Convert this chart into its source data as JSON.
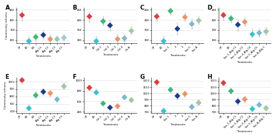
{
  "panels": [
    {
      "label": "A",
      "ylim": [
        285,
        460
      ],
      "yticks": [
        300,
        350,
        400,
        450
      ],
      "treatments": [
        "CP",
        "40",
        "B3",
        "Alg.C1",
        "Alg.C2",
        "Alg.C3",
        "Alg.C3"
      ],
      "points": [
        {
          "y": 425,
          "color": "#d94040",
          "yerr_lo": 30,
          "yerr_hi": 18
        },
        {
          "y": 295,
          "color": "#3bbfcf",
          "yerr_lo": 12,
          "yerr_hi": 22
        },
        {
          "y": 315,
          "color": "#3db87a",
          "yerr_lo": 18,
          "yerr_hi": 18
        },
        {
          "y": 325,
          "color": "#1e3a8a",
          "yerr_lo": 20,
          "yerr_hi": 20
        },
        {
          "y": 305,
          "color": "#e8956a",
          "yerr_lo": 15,
          "yerr_hi": 20
        },
        {
          "y": 305,
          "color": "#8ecfb0",
          "yerr_lo": 14,
          "yerr_hi": 14
        },
        {
          "y": 312,
          "color": "#a0c8d8",
          "yerr_lo": 12,
          "yerr_hi": 18
        }
      ]
    },
    {
      "label": "B",
      "ylim": [
        285,
        460
      ],
      "yticks": [
        300,
        350,
        400,
        450
      ],
      "treatments": [
        "CP",
        "40",
        "Oxl.1",
        "Oxl.2",
        "Oxl.3",
        "Oxl.4",
        "Ox.A"
      ],
      "points": [
        {
          "y": 418,
          "color": "#d94040",
          "yerr_lo": 28,
          "yerr_hi": 18
        },
        {
          "y": 295,
          "color": "#3bbfcf",
          "yerr_lo": 12,
          "yerr_hi": 25
        },
        {
          "y": 395,
          "color": "#3db87a",
          "yerr_lo": 22,
          "yerr_hi": 22
        },
        {
          "y": 372,
          "color": "#1e3a8a",
          "yerr_lo": 25,
          "yerr_hi": 25
        },
        {
          "y": 305,
          "color": "#e8956a",
          "yerr_lo": 18,
          "yerr_hi": 22
        },
        {
          "y": 310,
          "color": "#7ab8d0",
          "yerr_lo": 18,
          "yerr_hi": 20
        },
        {
          "y": 345,
          "color": "#a0c8a0",
          "yerr_lo": 15,
          "yerr_hi": 20
        }
      ]
    },
    {
      "label": "C",
      "ylim": [
        285,
        460
      ],
      "yticks": [
        300,
        350,
        400,
        450
      ],
      "treatments": [
        "CP",
        "40",
        "Suc.1",
        "2",
        "3",
        "Suc.5",
        "Suc.A"
      ],
      "points": [
        {
          "y": 418,
          "color": "#d94040",
          "yerr_lo": 25,
          "yerr_hi": 15
        },
        {
          "y": 295,
          "color": "#3bbfcf",
          "yerr_lo": 12,
          "yerr_hi": 25
        },
        {
          "y": 445,
          "color": "#3db87a",
          "yerr_lo": 22,
          "yerr_hi": 12
        },
        {
          "y": 355,
          "color": "#1e3a8a",
          "yerr_lo": 28,
          "yerr_hi": 28
        },
        {
          "y": 415,
          "color": "#e8956a",
          "yerr_lo": 20,
          "yerr_hi": 20
        },
        {
          "y": 380,
          "color": "#7ab8d0",
          "yerr_lo": 22,
          "yerr_hi": 22
        },
        {
          "y": 398,
          "color": "#a0c8a0",
          "yerr_lo": 18,
          "yerr_hi": 18
        }
      ]
    },
    {
      "label": "D",
      "ylim": [
        285,
        460
      ],
      "yticks": [
        300,
        350,
        400,
        450
      ],
      "treatments": [
        "CP",
        "40",
        "Suc.1_Alg.C1",
        "Suc.2_Alg.C2",
        "Suc.4_Alg.C4",
        "Suc.5_Alg.C5",
        "Suc.A_Alg.C"
      ],
      "points": [
        {
          "y": 422,
          "color": "#d94040",
          "yerr_lo": 25,
          "yerr_hi": 15
        },
        {
          "y": 408,
          "color": "#3db87a",
          "yerr_lo": 22,
          "yerr_hi": 15
        },
        {
          "y": 375,
          "color": "#1e3a8a",
          "yerr_lo": 28,
          "yerr_hi": 25
        },
        {
          "y": 390,
          "color": "#e8956a",
          "yerr_lo": 20,
          "yerr_hi": 20
        },
        {
          "y": 330,
          "color": "#3bbfcf",
          "yerr_lo": 18,
          "yerr_hi": 25
        },
        {
          "y": 335,
          "color": "#7ab8d0",
          "yerr_lo": 18,
          "yerr_hi": 22
        },
        {
          "y": 342,
          "color": "#a0c8a0",
          "yerr_lo": 15,
          "yerr_hi": 20
        }
      ]
    },
    {
      "label": "E",
      "ylim": [
        580,
        1060
      ],
      "yticks": [
        600,
        700,
        800,
        900,
        1000
      ],
      "treatments": [
        "CP",
        "40",
        "B3",
        "Alg.C1",
        "Alg.C2",
        "Alg.C3",
        "Alg.C3"
      ],
      "points": [
        {
          "y": 1015,
          "color": "#d94040",
          "yerr_lo": 45,
          "yerr_hi": 30
        },
        {
          "y": 638,
          "color": "#3bbfcf",
          "yerr_lo": 28,
          "yerr_hi": 45
        },
        {
          "y": 820,
          "color": "#3db87a",
          "yerr_lo": 40,
          "yerr_hi": 40
        },
        {
          "y": 862,
          "color": "#1e3a8a",
          "yerr_lo": 48,
          "yerr_hi": 48
        },
        {
          "y": 840,
          "color": "#e8956a",
          "yerr_lo": 38,
          "yerr_hi": 38
        },
        {
          "y": 758,
          "color": "#7ab8d0",
          "yerr_lo": 35,
          "yerr_hi": 35
        },
        {
          "y": 940,
          "color": "#a0c8a0",
          "yerr_lo": 42,
          "yerr_hi": 42
        }
      ]
    },
    {
      "label": "F",
      "ylim": [
        385,
        1060
      ],
      "yticks": [
        400,
        600,
        800,
        1000
      ],
      "treatments": [
        "CP",
        "40",
        "Oxl.1",
        "Oxl.2",
        "Oxl.3",
        "Oxl.4",
        "Ox.A"
      ],
      "points": [
        {
          "y": 858,
          "color": "#d94040",
          "yerr_lo": 55,
          "yerr_hi": 40
        },
        {
          "y": 775,
          "color": "#3bbfcf",
          "yerr_lo": 45,
          "yerr_hi": 60
        },
        {
          "y": 558,
          "color": "#3db87a",
          "yerr_lo": 40,
          "yerr_hi": 40
        },
        {
          "y": 478,
          "color": "#1e3a8a",
          "yerr_lo": 50,
          "yerr_hi": 50
        },
        {
          "y": 508,
          "color": "#e8956a",
          "yerr_lo": 42,
          "yerr_hi": 42
        },
        {
          "y": 682,
          "color": "#7ab8d0",
          "yerr_lo": 40,
          "yerr_hi": 40
        },
        {
          "y": 622,
          "color": "#a0c8a0",
          "yerr_lo": 38,
          "yerr_hi": 38
        }
      ]
    },
    {
      "label": "G",
      "ylim": [
        685,
        1260
      ],
      "yticks": [
        700,
        800,
        900,
        1000,
        1100,
        1200
      ],
      "treatments": [
        "CP",
        "40",
        "Suc.1",
        "2",
        "3",
        "Suc.5",
        "Suc.A"
      ],
      "points": [
        {
          "y": 1180,
          "color": "#d94040",
          "yerr_lo": 55,
          "yerr_hi": 30
        },
        {
          "y": 718,
          "color": "#3bbfcf",
          "yerr_lo": 28,
          "yerr_hi": 55
        },
        {
          "y": 1060,
          "color": "#3db87a",
          "yerr_lo": 48,
          "yerr_hi": 30
        },
        {
          "y": 958,
          "color": "#1e3a8a",
          "yerr_lo": 58,
          "yerr_hi": 58
        },
        {
          "y": 988,
          "color": "#e8956a",
          "yerr_lo": 50,
          "yerr_hi": 50
        },
        {
          "y": 778,
          "color": "#7ab8d0",
          "yerr_lo": 42,
          "yerr_hi": 42
        },
        {
          "y": 848,
          "color": "#a0c8a0",
          "yerr_lo": 40,
          "yerr_hi": 40
        }
      ]
    },
    {
      "label": "H",
      "ylim": [
        685,
        1260
      ],
      "yticks": [
        700,
        800,
        900,
        1000,
        1100,
        1200
      ],
      "treatments": [
        "CP",
        "40",
        "Suc.1_Alg.C1",
        "Suc.2_Alg.C2",
        "Suc.4_Alg.C4",
        "Suc.5_Alg.C5",
        "Suc.A_Alg.C"
      ],
      "points": [
        {
          "y": 1172,
          "color": "#d94040",
          "yerr_lo": 52,
          "yerr_hi": 30
        },
        {
          "y": 1038,
          "color": "#3db87a",
          "yerr_lo": 48,
          "yerr_hi": 35
        },
        {
          "y": 870,
          "color": "#1e3a8a",
          "yerr_lo": 58,
          "yerr_hi": 58
        },
        {
          "y": 898,
          "color": "#e8956a",
          "yerr_lo": 50,
          "yerr_hi": 50
        },
        {
          "y": 748,
          "color": "#3bbfcf",
          "yerr_lo": 35,
          "yerr_hi": 58
        },
        {
          "y": 818,
          "color": "#7ab8d0",
          "yerr_lo": 42,
          "yerr_hi": 42
        },
        {
          "y": 758,
          "color": "#a0c8a0",
          "yerr_lo": 38,
          "yerr_hi": 38
        }
      ]
    }
  ],
  "ylabel": "Community richness",
  "xlabel": "Treatments",
  "bg_color": "#ffffff",
  "grid_color": "#dddddd",
  "marker": "D",
  "markersize": 4.5,
  "errorbar_color": "#bbbbbb",
  "errorbar_lw": 0.6,
  "capsize": 1.5
}
